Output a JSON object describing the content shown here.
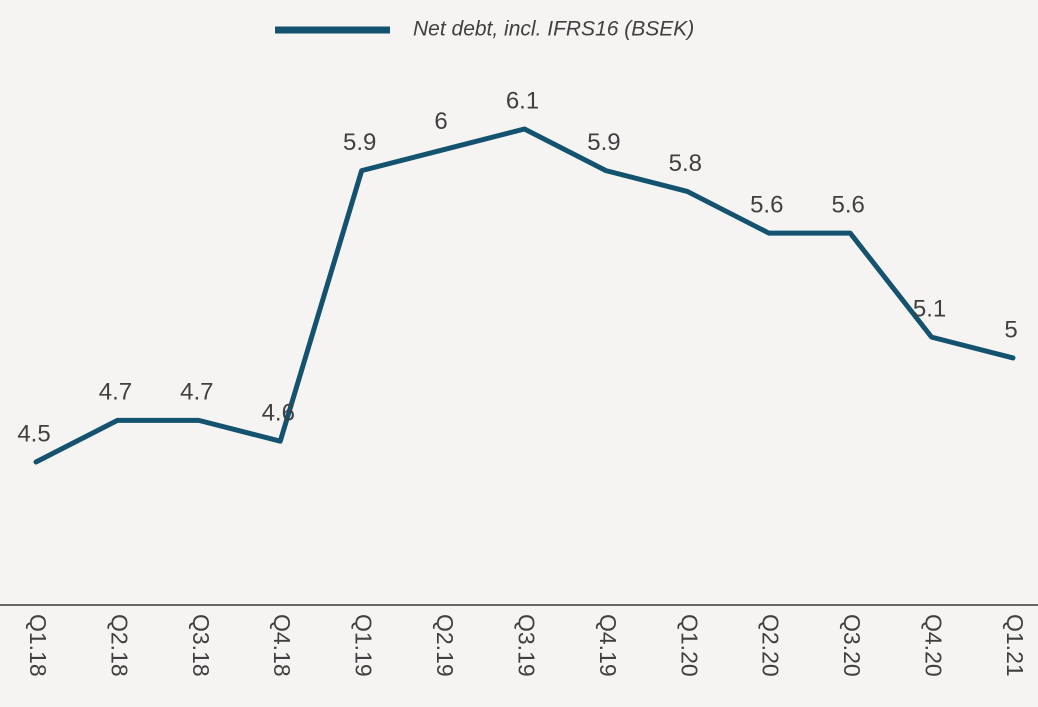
{
  "chart_data": {
    "type": "line",
    "categories": [
      "Q1.18",
      "Q2.18",
      "Q3.18",
      "Q4.18",
      "Q1.19",
      "Q2.19",
      "Q3.19",
      "Q4.19",
      "Q1.20",
      "Q2.20",
      "Q3.20",
      "Q4.20",
      "Q1.21"
    ],
    "series": [
      {
        "name": "Net debt, incl. IFRS16 (BSEK)",
        "color": "#13536f",
        "values": [
          4.5,
          4.7,
          4.7,
          4.6,
          5.9,
          6.0,
          6.1,
          5.9,
          5.8,
          5.6,
          5.6,
          5.1,
          5.0
        ]
      }
    ]
  }
}
